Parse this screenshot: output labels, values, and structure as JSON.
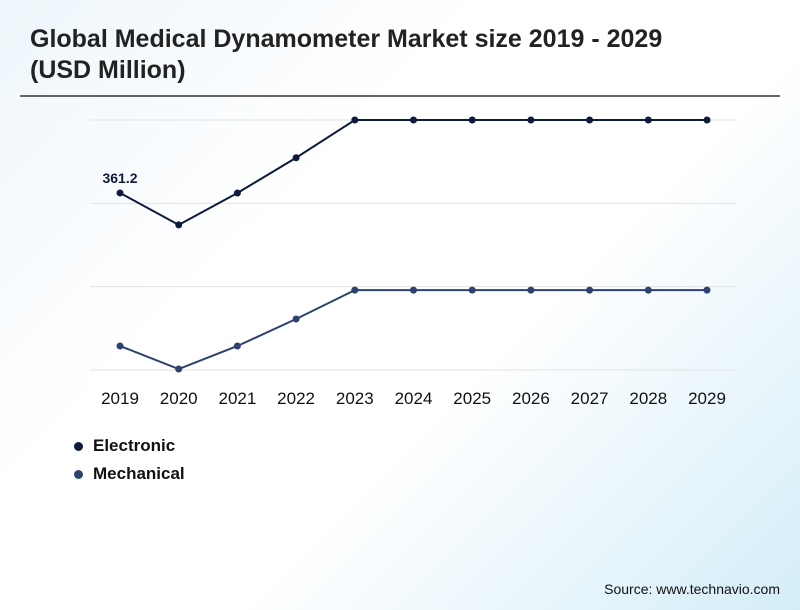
{
  "chart_data": {
    "type": "line",
    "title": "Global Medical Dynamometer Market size 2019 - 2029 (USD Million)",
    "xlabel": "",
    "ylabel": "",
    "categories": [
      "2019",
      "2020",
      "2021",
      "2022",
      "2023",
      "2024",
      "2025",
      "2026",
      "2027",
      "2028",
      "2029"
    ],
    "ylim": [
      0,
      510
    ],
    "grid": true,
    "legend_placement": "bottom-left",
    "series": [
      {
        "name": "Electronic",
        "color": "#0d1b3e",
        "values": [
          361.2,
          296,
          361,
          433,
          510,
          510,
          510,
          510,
          510,
          510,
          510
        ]
      },
      {
        "name": "Mechanical",
        "color": "#2e4272",
        "values": [
          49,
          2,
          49,
          104,
          163,
          163,
          163,
          163,
          163,
          163,
          163
        ]
      }
    ],
    "annotations": [
      {
        "series": "Electronic",
        "category": "2019",
        "text": "361.2"
      }
    ]
  },
  "source": "Source: www.technavio.com"
}
